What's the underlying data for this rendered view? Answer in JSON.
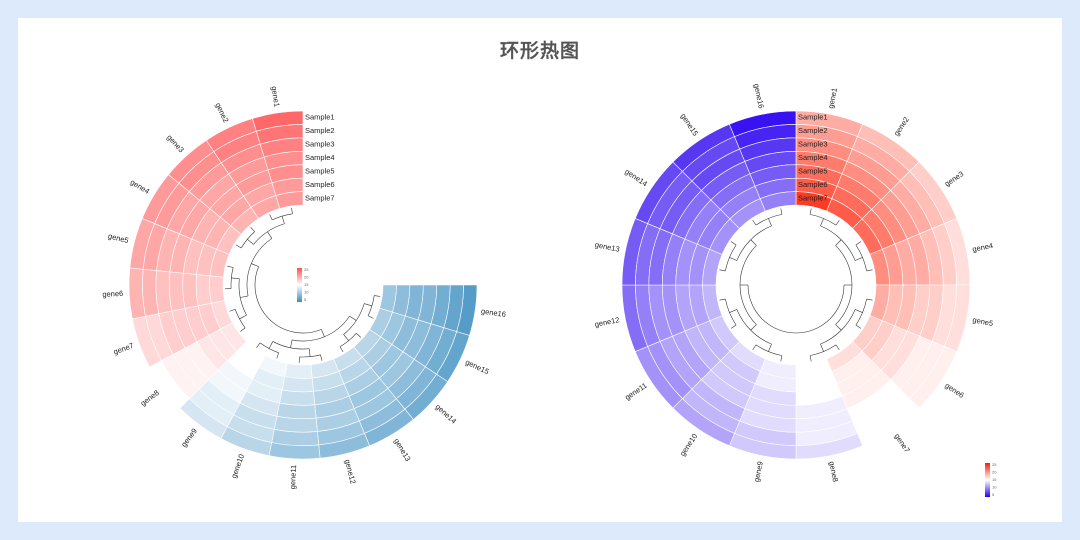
{
  "title": "环形热图",
  "chart_data": [
    {
      "type": "heatmap",
      "layout": "circular",
      "colors": {
        "low": "#3a8cc0",
        "mid": "#ffffff",
        "high": "#ff4f4f"
      },
      "rows": [
        "Sample1",
        "Sample2",
        "Sample3",
        "Sample4",
        "Sample5",
        "Sample6",
        "Sample7"
      ],
      "columns": [
        "gene16",
        "gene15",
        "gene14",
        "gene13",
        "gene12",
        "gene11",
        "gene10",
        "gene9",
        "gene8",
        "gene7",
        "gene6",
        "gene5",
        "gene4",
        "gene3",
        "gene2",
        "gene1"
      ],
      "values": [
        [
          2,
          3,
          4,
          5,
          6,
          7,
          9,
          11,
          14,
          17,
          20,
          21,
          22,
          23,
          24,
          26
        ],
        [
          3,
          4,
          5,
          6,
          7,
          8,
          10,
          12,
          15,
          17,
          20,
          21,
          22,
          23,
          24,
          25
        ],
        [
          4,
          5,
          6,
          7,
          8,
          9,
          10,
          12,
          15,
          18,
          19,
          20,
          21,
          22,
          23,
          24
        ],
        [
          5,
          6,
          7,
          7,
          8,
          9,
          11,
          13,
          15,
          18,
          19,
          20,
          21,
          21,
          22,
          23
        ],
        [
          5,
          6,
          7,
          8,
          9,
          10,
          12,
          13,
          16,
          18,
          19,
          19,
          20,
          21,
          22,
          23
        ],
        [
          6,
          7,
          8,
          9,
          10,
          11,
          12,
          14,
          16,
          18,
          18,
          19,
          20,
          21,
          21,
          22
        ],
        [
          7,
          8,
          9,
          10,
          11,
          12,
          13,
          14,
          16,
          17,
          18,
          19,
          19,
          20,
          21,
          22
        ]
      ],
      "legend_ticks": [
        "25",
        "20",
        "15",
        "10",
        "5"
      ],
      "vmin": 0,
      "vmax": 28
    },
    {
      "type": "heatmap",
      "layout": "circular",
      "colors": {
        "low": "#2a00f0",
        "mid": "#ffffff",
        "high": "#ff1a00"
      },
      "rows": [
        "Sample1",
        "Sample2",
        "Sample3",
        "Sample4",
        "Sample5",
        "Sample6",
        "Sample7"
      ],
      "columns": [
        "gene1",
        "gene2",
        "gene3",
        "gene4",
        "gene5",
        "gene6",
        "gene7",
        "gene8",
        "gene9",
        "gene10",
        "gene11",
        "gene12",
        "gene13",
        "gene14",
        "gene15",
        "gene16"
      ],
      "values": [
        [
          19,
          18,
          17,
          16,
          16,
          15,
          14,
          12,
          11,
          9,
          8,
          6,
          5,
          4,
          3,
          1
        ],
        [
          20,
          19,
          18,
          17,
          16,
          15,
          14,
          13,
          11,
          10,
          8,
          7,
          6,
          5,
          4,
          2
        ],
        [
          21,
          20,
          19,
          18,
          17,
          15,
          14,
          13,
          12,
          10,
          9,
          8,
          6,
          5,
          4,
          3
        ],
        [
          22,
          21,
          20,
          19,
          17,
          16,
          15,
          13,
          12,
          11,
          9,
          8,
          7,
          6,
          5,
          4
        ],
        [
          23,
          22,
          21,
          19,
          18,
          16,
          15,
          14,
          12,
          11,
          10,
          9,
          8,
          7,
          6,
          5
        ],
        [
          24,
          23,
          22,
          20,
          18,
          17,
          15,
          14,
          13,
          11,
          10,
          9,
          8,
          7,
          7,
          6
        ],
        [
          26,
          24,
          23,
          21,
          19,
          17,
          16,
          14,
          13,
          12,
          11,
          10,
          9,
          8,
          8,
          7
        ]
      ],
      "legend_ticks": [
        "25",
        "20",
        "15",
        "10",
        "5"
      ],
      "vmin": 0,
      "vmax": 28
    }
  ]
}
